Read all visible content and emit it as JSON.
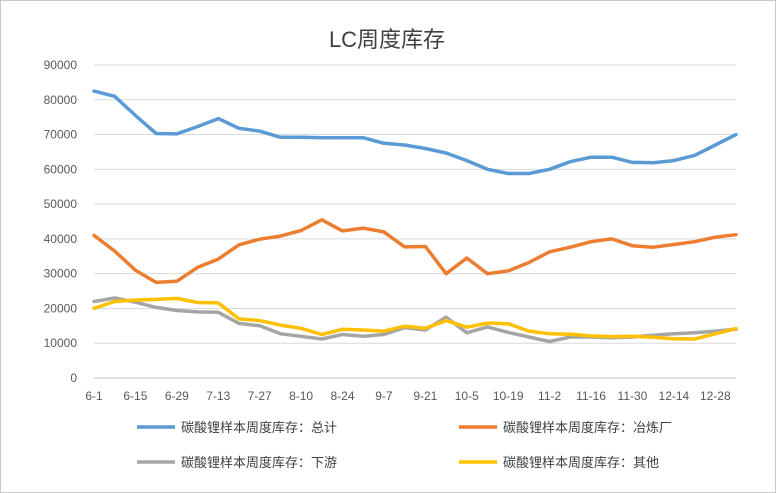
{
  "chart_data": {
    "type": "line",
    "title": "LC周度库存",
    "xlabel": "",
    "ylabel": "",
    "ylim": [
      0,
      90000
    ],
    "yticks": [
      0,
      10000,
      20000,
      30000,
      40000,
      50000,
      60000,
      70000,
      80000,
      90000
    ],
    "grid": true,
    "legend_position": "bottom",
    "x": [
      "6-1",
      "6-8",
      "6-15",
      "6-22",
      "6-29",
      "7-6",
      "7-13",
      "7-20",
      "7-27",
      "8-3",
      "8-10",
      "8-17",
      "8-24",
      "8-31",
      "9-7",
      "9-14",
      "9-21",
      "9-28",
      "10-5",
      "10-12",
      "10-19",
      "10-26",
      "11-2",
      "11-9",
      "11-16",
      "11-23",
      "11-30",
      "12-7",
      "12-14",
      "12-21",
      "12-28",
      "1-4"
    ],
    "xtick_labels": [
      "6-1",
      "6-15",
      "6-29",
      "7-13",
      "7-27",
      "8-10",
      "8-24",
      "9-7",
      "9-21",
      "10-5",
      "10-19",
      "11-2",
      "11-16",
      "11-30",
      "12-14",
      "12-28"
    ],
    "series": [
      {
        "name": "碳酸锂样本周度库存：总计",
        "color": "#5b9bd5",
        "values": [
          82500,
          81000,
          75500,
          70300,
          70200,
          72300,
          74600,
          71800,
          71000,
          69200,
          69200,
          69100,
          69100,
          69100,
          67500,
          67000,
          66000,
          64700,
          62500,
          60000,
          58800,
          58800,
          60000,
          62200,
          63500,
          63500,
          62000,
          61900,
          62500,
          64000,
          67000,
          70000
        ]
      },
      {
        "name": "碳酸锂样本周度库存：冶炼厂",
        "color": "#ed7d31",
        "values": [
          41000,
          36500,
          31000,
          27500,
          27800,
          31800,
          34200,
          38300,
          39900,
          40800,
          42400,
          45500,
          42300,
          43100,
          42000,
          37700,
          37800,
          30000,
          34500,
          30000,
          30800,
          33200,
          36300,
          37600,
          39200,
          40000,
          38000,
          37600,
          38400,
          39200,
          40500,
          41200
        ]
      },
      {
        "name": "碳酸锂样本周度库存：下游",
        "color": "#a5a5a5",
        "values": [
          22000,
          23000,
          21800,
          20300,
          19400,
          19000,
          18900,
          15700,
          15000,
          12700,
          12000,
          11200,
          12500,
          12000,
          12500,
          14500,
          13800,
          17500,
          13000,
          14700,
          13100,
          11800,
          10500,
          11800,
          11800,
          11600,
          11800,
          12300,
          12700,
          13000,
          13500,
          14000
        ]
      },
      {
        "name": "碳酸锂样本周度库存：其他",
        "color": "#ffc000",
        "values": [
          20000,
          22000,
          22400,
          22600,
          22900,
          21700,
          21600,
          17000,
          16500,
          15200,
          14300,
          12500,
          14000,
          13800,
          13500,
          14900,
          14300,
          16500,
          14600,
          15800,
          15600,
          13500,
          12700,
          12600,
          12100,
          11900,
          12000,
          11700,
          11300,
          11200,
          12700,
          14200
        ]
      }
    ]
  }
}
